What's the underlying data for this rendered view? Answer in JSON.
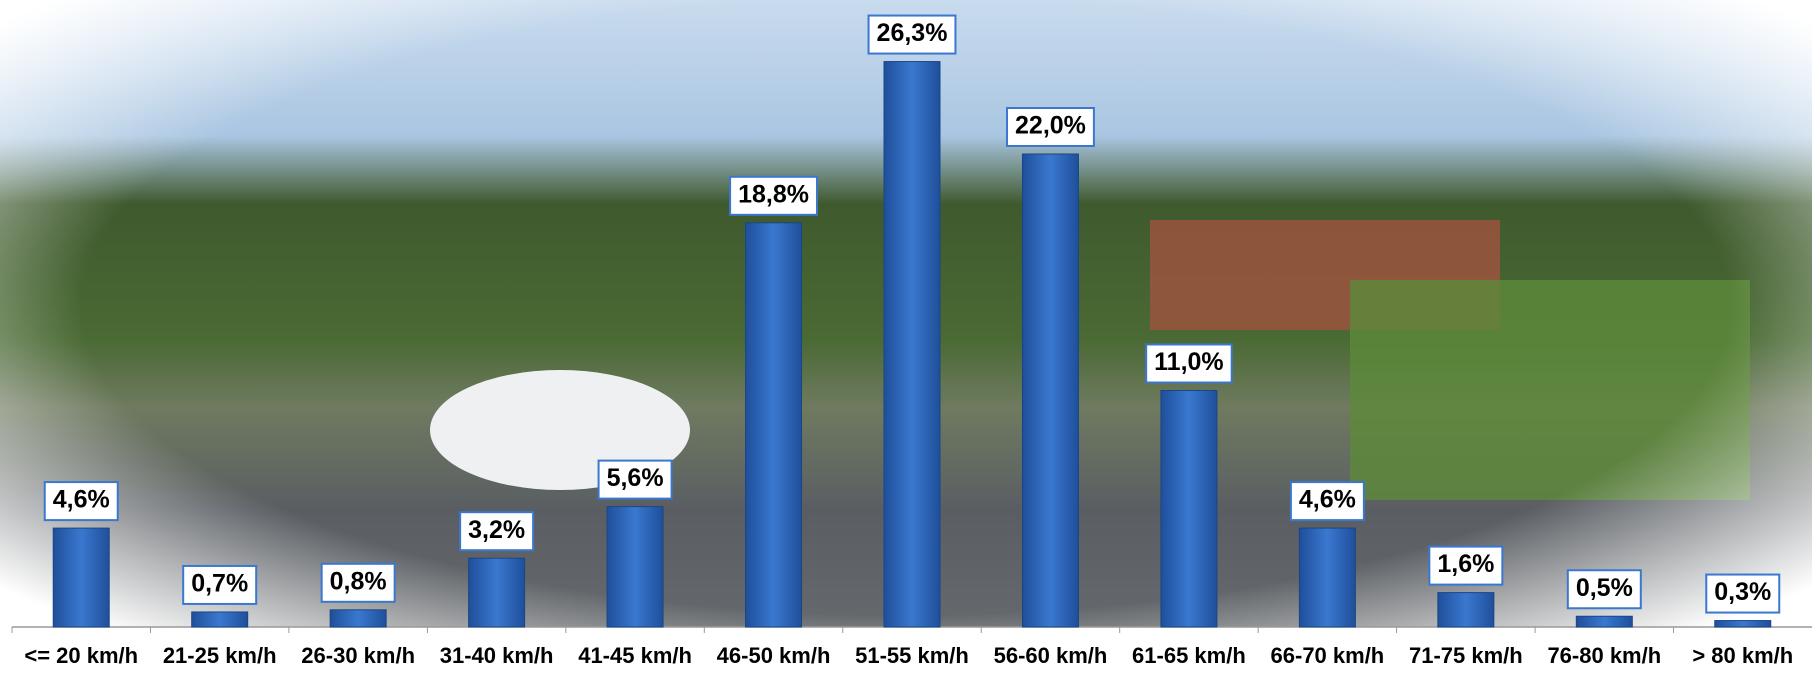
{
  "chart_data": {
    "type": "bar",
    "categories": [
      "<= 20 km/h",
      "21-25 km/h",
      "26-30 km/h",
      "31-40 km/h",
      "41-45 km/h",
      "46-50 km/h",
      "51-55 km/h",
      "56-60 km/h",
      "61-65 km/h",
      "66-70 km/h",
      "71-75 km/h",
      "76-80 km/h",
      "> 80 km/h"
    ],
    "values": [
      4.6,
      0.7,
      0.8,
      3.2,
      5.6,
      18.8,
      26.3,
      22.0,
      11.0,
      4.6,
      1.6,
      0.5,
      0.3
    ],
    "value_labels": [
      "4,6%",
      "0,7%",
      "0,8%",
      "3,2%",
      "5,6%",
      "18,8%",
      "26,3%",
      "22,0%",
      "11,0%",
      "4,6%",
      "1,6%",
      "0,5%",
      "0,3%"
    ],
    "color": "#3a78d0"
  }
}
